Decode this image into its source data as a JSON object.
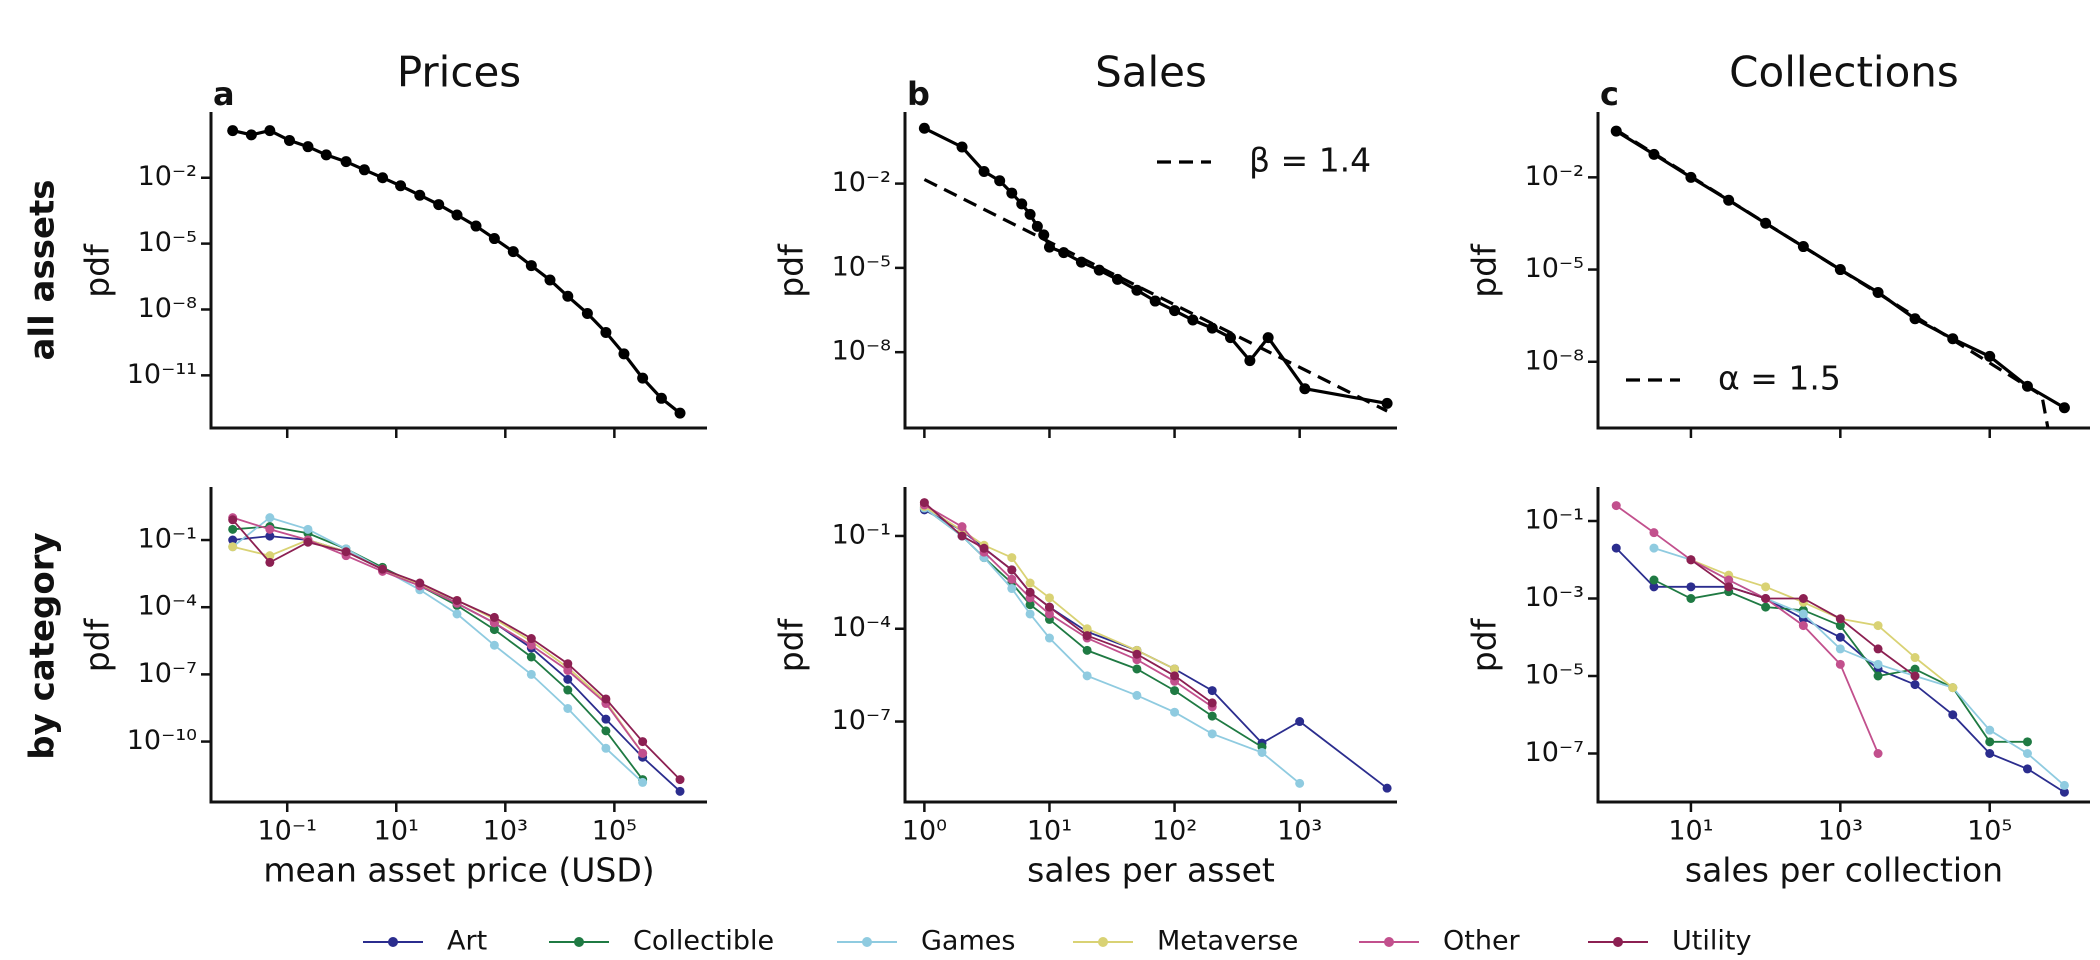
{
  "row_labels": [
    "all assets",
    "by category"
  ],
  "chart_data": [
    {
      "type": "line",
      "title": "Prices",
      "panel_label": "a",
      "ylabel": "pdf",
      "xscale": "log",
      "yscale": "log",
      "xlim": [
        0.004,
        5000000
      ],
      "ylim": [
        4e-14,
        8
      ],
      "xticks": [
        0.1,
        10,
        1000,
        100000
      ],
      "yticks": [
        {
          "value": 0.01,
          "label": "10⁻²"
        },
        {
          "value": 1e-05,
          "label": "10⁻⁵"
        },
        {
          "value": 1e-08,
          "label": "10⁻⁸"
        },
        {
          "value": 1e-11,
          "label": "10⁻¹¹"
        }
      ],
      "series": [
        {
          "color": "#000000",
          "x": [
            0.01,
            0.022,
            0.048,
            0.11,
            0.24,
            0.52,
            1.2,
            2.6,
            5.6,
            12,
            27,
            60,
            130,
            290,
            630,
            1400,
            3000,
            6600,
            14000,
            32000,
            70000,
            150000,
            330000,
            730000,
            1600000
          ],
          "values": [
            1.4,
            0.9,
            1.4,
            0.5,
            0.26,
            0.11,
            0.054,
            0.023,
            0.01,
            0.0043,
            0.0016,
            0.0006,
            0.0002,
            6.3e-05,
            1.7e-05,
            4.3e-06,
            1e-06,
            2.2e-07,
            4e-08,
            6.6e-09,
            9e-10,
            9.5e-11,
            7.5e-12,
            9e-13,
            1.9e-13
          ]
        }
      ]
    },
    {
      "type": "line",
      "title": "Sales",
      "panel_label": "b",
      "ylabel": "pdf",
      "xscale": "log",
      "yscale": "log",
      "xlim": [
        0.7,
        6000
      ],
      "ylim": [
        2e-11,
        3
      ],
      "xticks": [
        1,
        10,
        100,
        1000
      ],
      "yticks": [
        {
          "value": 0.01,
          "label": "10⁻²"
        },
        {
          "value": 1e-05,
          "label": "10⁻⁵"
        },
        {
          "value": 1e-08,
          "label": "10⁻⁸"
        }
      ],
      "legend": "upper right",
      "series": [
        {
          "color": "#000000",
          "x": [
            1,
            2,
            3,
            4,
            5,
            6,
            7,
            8,
            9,
            10,
            13,
            18,
            25,
            35,
            50,
            70,
            100,
            140,
            200,
            280,
            400,
            560,
            1100,
            5000
          ],
          "values": [
            0.93,
            0.2,
            0.027,
            0.0126,
            0.0046,
            0.0019,
            0.0008,
            0.0003,
            0.00015,
            5.5e-05,
            3.5e-05,
            1.6e-05,
            8.3e-06,
            3.9e-06,
            1.6e-06,
            6.6e-07,
            3e-07,
            1.4e-07,
            7.2e-08,
            3.3e-08,
            5e-09,
            3.3e-08,
            5e-10,
            1.5e-10
          ]
        },
        {
          "name": "β = 1.4",
          "color": "#000000",
          "dash": true,
          "x": [
            1,
            5000
          ],
          "values": [
            0.014,
            8e-11
          ]
        }
      ]
    },
    {
      "type": "line",
      "title": "Collections",
      "panel_label": "c",
      "ylabel": "pdf",
      "xscale": "log",
      "yscale": "log",
      "xlim": [
        0.57,
        2200000
      ],
      "ylim": [
        7e-11,
        1.15
      ],
      "xticks": [
        10,
        1000,
        100000
      ],
      "yticks": [
        {
          "value": 0.01,
          "label": "10⁻²"
        },
        {
          "value": 1e-05,
          "label": "10⁻⁵"
        },
        {
          "value": 1e-08,
          "label": "10⁻⁸"
        }
      ],
      "legend": "lower left",
      "series": [
        {
          "color": "#000000",
          "x": [
            1,
            3.2,
            10,
            32,
            100,
            320,
            1000,
            3200,
            10000,
            32000,
            100000,
            320000,
            1000000
          ],
          "values": [
            0.32,
            0.056,
            0.01,
            0.0018,
            0.00032,
            5.6e-05,
            1e-05,
            1.8e-06,
            2.5e-07,
            5.6e-08,
            1.5e-08,
            1.6e-09,
            3.2e-10
          ]
        },
        {
          "name": "α = 1.5",
          "color": "#000000",
          "dash": true,
          "x": [
            1,
            500000,
            600000
          ],
          "values": [
            0.35,
            8e-10,
            7e-11
          ]
        }
      ]
    },
    {
      "type": "line",
      "xlabel": "mean asset price (USD)",
      "ylabel": "pdf",
      "xscale": "log",
      "yscale": "log",
      "xlim": [
        0.004,
        5000000
      ],
      "ylim": [
        2e-13,
        19
      ],
      "xticks": [
        {
          "value": 0.1,
          "label": "10⁻¹"
        },
        {
          "value": 10,
          "label": "10¹"
        },
        {
          "value": 1000,
          "label": "10³"
        },
        {
          "value": 100000,
          "label": "10⁵"
        }
      ],
      "yticks": [
        {
          "value": 0.1,
          "label": "10⁻¹"
        },
        {
          "value": 0.0001,
          "label": "10⁻⁴"
        },
        {
          "value": 1e-07,
          "label": "10⁻⁷"
        },
        {
          "value": 1e-10,
          "label": "10⁻¹⁰"
        }
      ],
      "x": [
        0.01,
        0.048,
        0.24,
        1.2,
        5.6,
        27,
        130,
        630,
        3000,
        14000,
        70000,
        330000,
        1600000
      ],
      "series": [
        {
          "name": "Art",
          "color": "#2b2d8e",
          "values": [
            0.1,
            0.15,
            0.1,
            0.03,
            0.005,
            0.001,
            0.00015,
            2e-05,
            1.5e-06,
            6e-08,
            1e-09,
            2e-11,
            6e-13
          ]
        },
        {
          "name": "Collectible",
          "color": "#1f7a43",
          "values": [
            0.3,
            0.4,
            0.2,
            0.04,
            0.006,
            0.0009,
            0.00012,
            1e-05,
            6e-07,
            2e-08,
            3e-10,
            2e-12,
            null
          ]
        },
        {
          "name": "Games",
          "color": "#8fcbe0",
          "values": [
            0.05,
            1,
            0.3,
            0.04,
            0.005,
            0.0006,
            5e-05,
            2e-06,
            1e-07,
            3e-09,
            5e-11,
            1.5e-12,
            null
          ]
        },
        {
          "name": "Metaverse",
          "color": "#d9d274",
          "values": [
            0.05,
            0.02,
            0.1,
            0.03,
            0.005,
            0.001,
            0.0002,
            3e-05,
            3e-06,
            2e-07,
            6e-09,
            3e-11,
            null
          ]
        },
        {
          "name": "Other",
          "color": "#c2508d",
          "values": [
            1,
            0.3,
            0.1,
            0.02,
            0.004,
            0.0009,
            0.00015,
            2e-05,
            2e-06,
            1.5e-07,
            5e-09,
            3e-11,
            null
          ]
        },
        {
          "name": "Utility",
          "color": "#8c2052",
          "values": [
            0.8,
            0.01,
            0.08,
            0.03,
            0.005,
            0.0012,
            0.0002,
            3.5e-05,
            4e-06,
            3e-07,
            8e-09,
            1e-10,
            2e-12
          ]
        }
      ]
    },
    {
      "type": "line",
      "xlabel": "sales per asset",
      "ylabel": "pdf",
      "xscale": "log",
      "yscale": "log",
      "xlim": [
        0.7,
        6000
      ],
      "ylim": [
        2.5e-10,
        3.3
      ],
      "xticks": [
        {
          "value": 1,
          "label": "10⁰"
        },
        {
          "value": 10,
          "label": "10¹"
        },
        {
          "value": 100,
          "label": "10²"
        },
        {
          "value": 1000,
          "label": "10³"
        }
      ],
      "yticks": [
        {
          "value": 0.1,
          "label": "10⁻¹"
        },
        {
          "value": 0.0001,
          "label": "10⁻⁴"
        },
        {
          "value": 1e-07,
          "label": "10⁻⁷"
        }
      ],
      "x": [
        1,
        2,
        3,
        5,
        7,
        10,
        20,
        50,
        100,
        200,
        500,
        1000,
        5000
      ],
      "series": [
        {
          "name": "Art",
          "color": "#2b2d8e",
          "values": [
            0.7,
            0.15,
            0.04,
            0.008,
            0.0015,
            0.0005,
            8e-05,
            2e-05,
            5e-06,
            1e-06,
            2e-08,
            1e-07,
            7e-10
          ]
        },
        {
          "name": "Collectible",
          "color": "#1f7a43",
          "values": [
            0.8,
            0.1,
            0.02,
            0.003,
            0.0006,
            0.0002,
            2e-05,
            5e-06,
            1e-06,
            1.5e-07,
            1.5e-08,
            null,
            null
          ]
        },
        {
          "name": "Games",
          "color": "#8fcbe0",
          "values": [
            0.8,
            0.1,
            0.02,
            0.002,
            0.0003,
            5e-05,
            3e-06,
            7e-07,
            2e-07,
            4e-08,
            1e-08,
            1e-09,
            null
          ]
        },
        {
          "name": "Metaverse",
          "color": "#d9d274",
          "values": [
            0.9,
            0.15,
            0.05,
            0.02,
            0.003,
            0.001,
            0.0001,
            2e-05,
            5e-06,
            null,
            null,
            null,
            null
          ]
        },
        {
          "name": "Other",
          "color": "#c2508d",
          "values": [
            1,
            0.2,
            0.03,
            0.004,
            0.001,
            0.0003,
            5e-05,
            1e-05,
            2e-06,
            3e-07,
            null,
            null,
            null
          ]
        },
        {
          "name": "Utility",
          "color": "#8c2052",
          "values": [
            1.2,
            0.1,
            0.04,
            0.008,
            0.0015,
            0.0005,
            6e-05,
            1.5e-05,
            3e-06,
            4e-07,
            null,
            null,
            null
          ]
        }
      ]
    },
    {
      "type": "line",
      "xlabel": "sales per collection",
      "ylabel": "pdf",
      "xscale": "log",
      "yscale": "log",
      "xlim": [
        0.57,
        2200000
      ],
      "ylim": [
        5.6e-09,
        0.67
      ],
      "xticks": [
        {
          "value": 10,
          "label": "10¹"
        },
        {
          "value": 1000,
          "label": "10³"
        },
        {
          "value": 100000,
          "label": "10⁵"
        }
      ],
      "yticks": [
        {
          "value": 0.1,
          "label": "10⁻¹"
        },
        {
          "value": 0.001,
          "label": "10⁻³"
        },
        {
          "value": 1e-05,
          "label": "10⁻⁵"
        },
        {
          "value": 1e-07,
          "label": "10⁻⁷"
        }
      ],
      "x": [
        1,
        3.2,
        10,
        32,
        100,
        320,
        1000,
        3200,
        10000,
        32000,
        100000,
        320000,
        1000000
      ],
      "series": [
        {
          "name": "Art",
          "color": "#2b2d8e",
          "values": [
            0.02,
            0.002,
            0.002,
            0.002,
            0.001,
            0.0003,
            0.0001,
            1.5e-05,
            6e-06,
            1e-06,
            1e-07,
            4e-08,
            1e-08
          ]
        },
        {
          "name": "Collectible",
          "color": "#1f7a43",
          "values": [
            null,
            0.003,
            0.001,
            0.0015,
            0.0006,
            0.0005,
            0.0002,
            1e-05,
            1.5e-05,
            5e-06,
            2e-07,
            2e-07,
            null
          ]
        },
        {
          "name": "Games",
          "color": "#8fcbe0",
          "values": [
            null,
            0.02,
            0.01,
            0.003,
            0.001,
            0.0004,
            5e-05,
            2e-05,
            1e-05,
            5e-06,
            4e-07,
            1e-07,
            1.5e-08
          ]
        },
        {
          "name": "Metaverse",
          "color": "#d9d274",
          "values": [
            null,
            null,
            0.01,
            0.004,
            0.002,
            0.0008,
            0.0003,
            0.0002,
            3e-05,
            5e-06,
            null,
            null,
            null
          ]
        },
        {
          "name": "Other",
          "color": "#c2508d",
          "values": [
            0.25,
            0.05,
            0.01,
            0.003,
            0.001,
            0.0002,
            2e-05,
            1e-07,
            null,
            null,
            null,
            null,
            null
          ]
        },
        {
          "name": "Utility",
          "color": "#8c2052",
          "values": [
            null,
            null,
            0.01,
            0.002,
            0.001,
            0.001,
            0.0003,
            5e-05,
            1e-05,
            null,
            null,
            null,
            null
          ]
        }
      ]
    }
  ]
}
